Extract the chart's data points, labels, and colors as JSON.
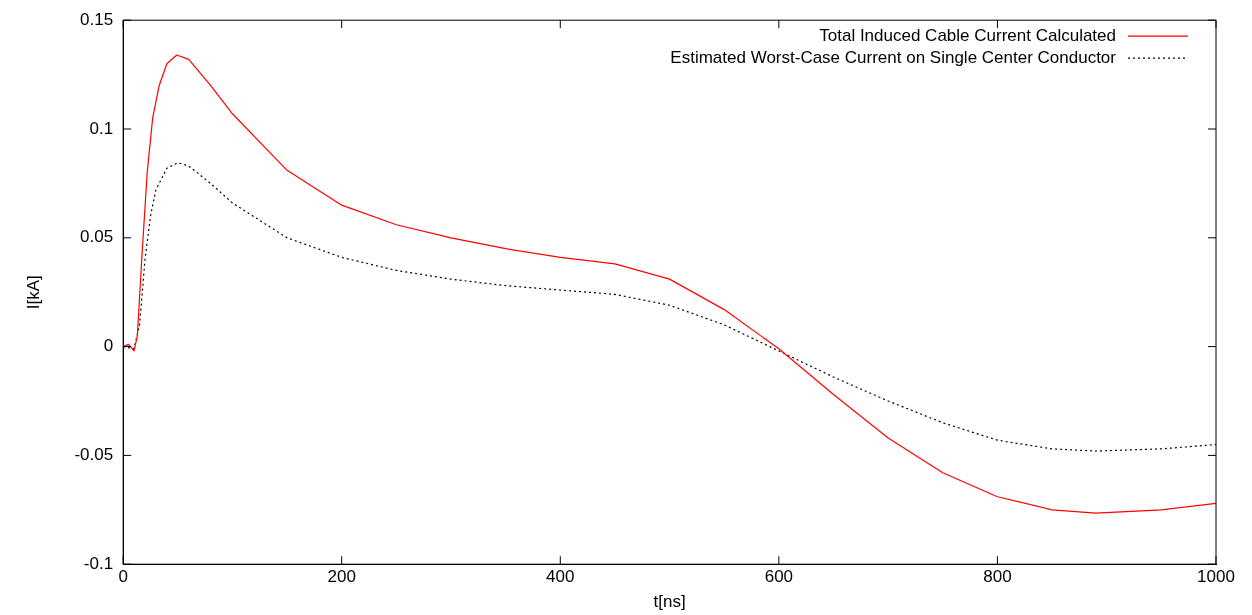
{
  "chart_data": {
    "type": "line",
    "xlabel": "t[ns]",
    "ylabel": "I[kA]",
    "xlim": [
      0,
      1000
    ],
    "ylim": [
      -0.1,
      0.15
    ],
    "xticks": [
      0,
      200,
      400,
      600,
      800,
      1000
    ],
    "yticks": [
      -0.1,
      -0.05,
      0,
      0.05,
      0.1,
      0.15
    ],
    "grid": false,
    "legend": "top right",
    "marker": "none",
    "series": [
      {
        "name": "Total Induced Cable Current Calculated",
        "color": "#ff0000",
        "line_style": "solid",
        "x": [
          0,
          5,
          10,
          13,
          17,
          22,
          27,
          33,
          40,
          49,
          60,
          80,
          100,
          150,
          200,
          250,
          300,
          350,
          400,
          450,
          500,
          550,
          600,
          650,
          700,
          750,
          800,
          850,
          890,
          950,
          1000
        ],
        "values": [
          0,
          0.001,
          -0.002,
          0.005,
          0.04,
          0.08,
          0.105,
          0.12,
          0.13,
          0.134,
          0.132,
          0.12,
          0.107,
          0.081,
          0.065,
          0.056,
          0.05,
          0.045,
          0.041,
          0.038,
          0.031,
          0.017,
          -0.001,
          -0.022,
          -0.042,
          -0.058,
          -0.069,
          -0.075,
          -0.0765,
          -0.075,
          -0.072
        ]
      },
      {
        "name": "Estimated Worst-Case Current on Single Center Conductor",
        "color": "#000000",
        "line_style": "dotted",
        "x": [
          0,
          10,
          15,
          20,
          25,
          30,
          40,
          50,
          60,
          80,
          100,
          150,
          200,
          250,
          300,
          350,
          400,
          450,
          500,
          550,
          600,
          650,
          700,
          750,
          800,
          850,
          890,
          950,
          1000
        ],
        "values": [
          0,
          -0.001,
          0.01,
          0.04,
          0.06,
          0.072,
          0.082,
          0.0845,
          0.083,
          0.075,
          0.066,
          0.05,
          0.041,
          0.035,
          0.031,
          0.028,
          0.026,
          0.024,
          0.019,
          0.01,
          -0.002,
          -0.014,
          -0.025,
          -0.035,
          -0.043,
          -0.047,
          -0.048,
          -0.047,
          -0.045
        ]
      }
    ]
  }
}
